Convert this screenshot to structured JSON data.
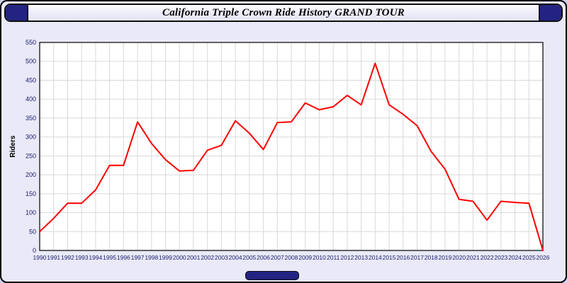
{
  "window": {
    "title": "California Triple Crown Ride History GRAND TOUR"
  },
  "chart_data": {
    "type": "line",
    "title": "California Triple Crown Ride History GRAND TOUR",
    "xlabel": "",
    "ylabel": "Riders",
    "ylim": [
      0,
      550
    ],
    "ytick_step": 50,
    "grid": true,
    "legend": "none",
    "categories": [
      "1990",
      "1991",
      "1992",
      "1993",
      "1994",
      "1995",
      "1996",
      "1997",
      "1998",
      "1999",
      "2000",
      "2001",
      "2002",
      "2003",
      "2004",
      "2005",
      "2006",
      "2007",
      "2008",
      "2009",
      "2010",
      "2011",
      "2012",
      "2013",
      "2014",
      "2015",
      "2016",
      "2017",
      "2018",
      "2019",
      "2020",
      "2021",
      "2022",
      "2023",
      "2024",
      "2025",
      "2026"
    ],
    "values": [
      50,
      85,
      125,
      125,
      160,
      225,
      225,
      340,
      283,
      240,
      210,
      212,
      265,
      278,
      343,
      310,
      267,
      338,
      340,
      390,
      372,
      380,
      410,
      385,
      495,
      385,
      360,
      330,
      262,
      215,
      135,
      130,
      80,
      130,
      127,
      125,
      0
    ]
  },
  "theme": {
    "line_color": "#ff0000",
    "grid_color": "#d9d9d9",
    "plot_background": "#ffffff",
    "plot_border": "#000000",
    "tick_text_color": "#1b1b70",
    "axis_label_color": "#000000",
    "accent_navy": "#232382",
    "page_background": "#e9e9f7"
  }
}
